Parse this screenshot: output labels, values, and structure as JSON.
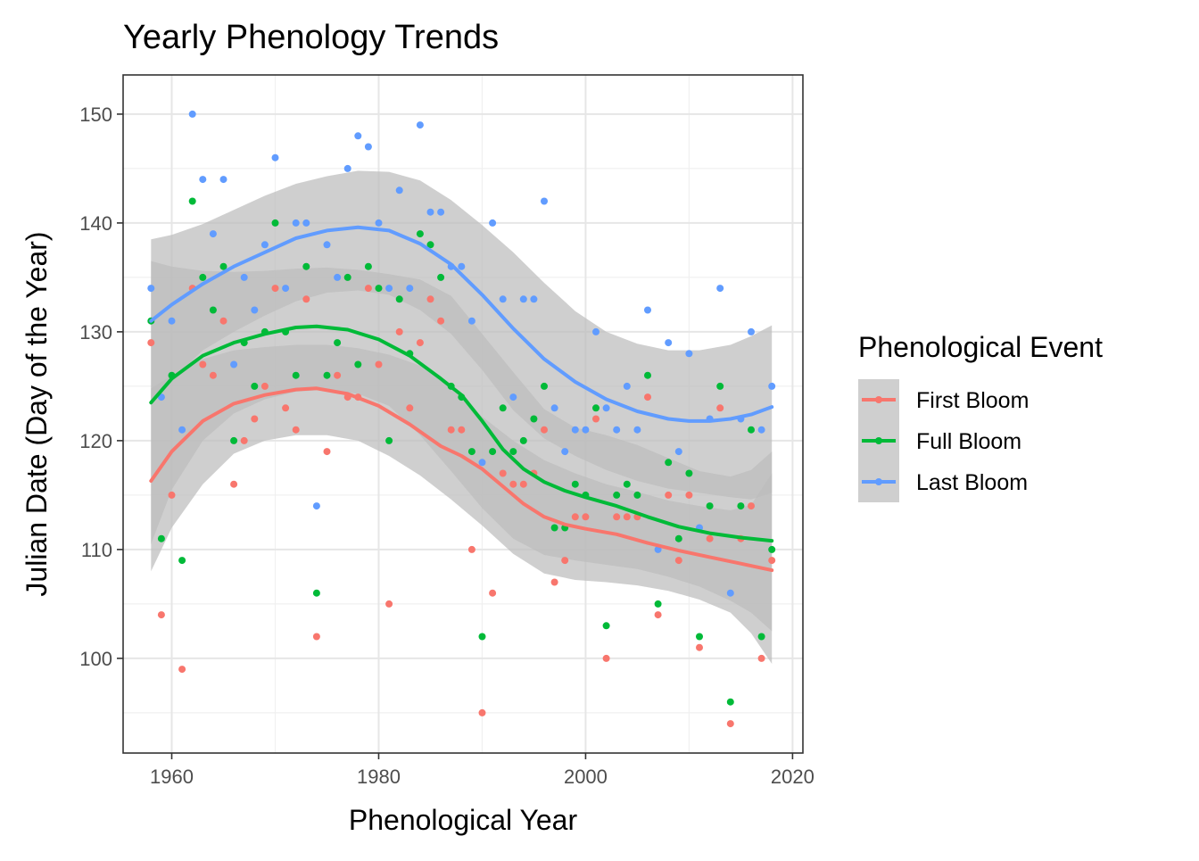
{
  "chart_data": {
    "type": "scatter",
    "title": "Yearly Phenology Trends",
    "xlabel": "Phenological Year",
    "ylabel": "Julian Date (Day of the Year)",
    "xlim": [
      1955.3,
      2021.0
    ],
    "ylim": [
      91.3,
      153.6
    ],
    "x_ticks": [
      1960,
      1980,
      2000,
      2020
    ],
    "y_ticks": [
      100,
      110,
      120,
      130,
      140,
      150
    ],
    "grid": true,
    "legend": {
      "title": "Phenological Event",
      "position": "right"
    },
    "series": [
      {
        "name": "First Bloom",
        "color": "#F8766D",
        "points": [
          [
            1958,
            129
          ],
          [
            1959,
            104
          ],
          [
            1960,
            115
          ],
          [
            1961,
            99
          ],
          [
            1962,
            134
          ],
          [
            1963,
            127
          ],
          [
            1964,
            126
          ],
          [
            1965,
            131
          ],
          [
            1966,
            116
          ],
          [
            1967,
            120
          ],
          [
            1968,
            122
          ],
          [
            1969,
            125
          ],
          [
            1970,
            134
          ],
          [
            1971,
            123
          ],
          [
            1972,
            121
          ],
          [
            1973,
            133
          ],
          [
            1974,
            102
          ],
          [
            1975,
            119
          ],
          [
            1976,
            126
          ],
          [
            1977,
            124
          ],
          [
            1978,
            124
          ],
          [
            1979,
            134
          ],
          [
            1980,
            127
          ],
          [
            1981,
            105
          ],
          [
            1982,
            130
          ],
          [
            1983,
            123
          ],
          [
            1984,
            129
          ],
          [
            1985,
            133
          ],
          [
            1986,
            131
          ],
          [
            1987,
            121
          ],
          [
            1988,
            121
          ],
          [
            1989,
            110
          ],
          [
            1990,
            95
          ],
          [
            1991,
            106
          ],
          [
            1992,
            117
          ],
          [
            1993,
            116
          ],
          [
            1994,
            116
          ],
          [
            1995,
            117
          ],
          [
            1996,
            121
          ],
          [
            1997,
            107
          ],
          [
            1998,
            109
          ],
          [
            1999,
            113
          ],
          [
            2000,
            113
          ],
          [
            2001,
            122
          ],
          [
            2002,
            100
          ],
          [
            2003,
            113
          ],
          [
            2004,
            113
          ],
          [
            2005,
            113
          ],
          [
            2006,
            124
          ],
          [
            2007,
            104
          ],
          [
            2008,
            115
          ],
          [
            2009,
            109
          ],
          [
            2010,
            115
          ],
          [
            2011,
            101
          ],
          [
            2012,
            111
          ],
          [
            2013,
            123
          ],
          [
            2014,
            94
          ],
          [
            2015,
            111
          ],
          [
            2016,
            114
          ],
          [
            2017,
            100
          ],
          [
            2018,
            109
          ]
        ],
        "smooth": [
          [
            1958,
            116.3
          ],
          [
            1960,
            119.0
          ],
          [
            1963,
            121.8
          ],
          [
            1966,
            123.4
          ],
          [
            1969,
            124.2
          ],
          [
            1972,
            124.7
          ],
          [
            1974,
            124.8
          ],
          [
            1977,
            124.3
          ],
          [
            1980,
            123.2
          ],
          [
            1983,
            121.5
          ],
          [
            1986,
            119.5
          ],
          [
            1988,
            118.6
          ],
          [
            1990,
            117.4
          ],
          [
            1992,
            115.8
          ],
          [
            1994,
            114.2
          ],
          [
            1996,
            113.0
          ],
          [
            1998,
            112.3
          ],
          [
            2000,
            111.9
          ],
          [
            2003,
            111.4
          ],
          [
            2006,
            110.6
          ],
          [
            2009,
            109.9
          ],
          [
            2012,
            109.3
          ],
          [
            2015,
            108.7
          ],
          [
            2018,
            108.1
          ]
        ]
      },
      {
        "name": "Full Bloom",
        "color": "#00BA38",
        "points": [
          [
            1958,
            131
          ],
          [
            1959,
            111
          ],
          [
            1960,
            126
          ],
          [
            1961,
            109
          ],
          [
            1962,
            142
          ],
          [
            1963,
            135
          ],
          [
            1964,
            132
          ],
          [
            1965,
            136
          ],
          [
            1966,
            120
          ],
          [
            1967,
            129
          ],
          [
            1968,
            125
          ],
          [
            1969,
            130
          ],
          [
            1970,
            140
          ],
          [
            1971,
            130
          ],
          [
            1972,
            126
          ],
          [
            1973,
            136
          ],
          [
            1974,
            106
          ],
          [
            1975,
            126
          ],
          [
            1976,
            129
          ],
          [
            1977,
            135
          ],
          [
            1978,
            127
          ],
          [
            1979,
            136
          ],
          [
            1980,
            134
          ],
          [
            1981,
            120
          ],
          [
            1982,
            133
          ],
          [
            1983,
            128
          ],
          [
            1984,
            139
          ],
          [
            1985,
            138
          ],
          [
            1986,
            135
          ],
          [
            1987,
            125
          ],
          [
            1988,
            124
          ],
          [
            1989,
            119
          ],
          [
            1990,
            102
          ],
          [
            1991,
            119
          ],
          [
            1992,
            123
          ],
          [
            1993,
            119
          ],
          [
            1994,
            120
          ],
          [
            1995,
            122
          ],
          [
            1996,
            125
          ],
          [
            1997,
            112
          ],
          [
            1998,
            112
          ],
          [
            1999,
            116
          ],
          [
            2000,
            115
          ],
          [
            2001,
            123
          ],
          [
            2002,
            103
          ],
          [
            2003,
            115
          ],
          [
            2004,
            116
          ],
          [
            2005,
            115
          ],
          [
            2006,
            126
          ],
          [
            2007,
            105
          ],
          [
            2008,
            118
          ],
          [
            2009,
            111
          ],
          [
            2010,
            117
          ],
          [
            2011,
            102
          ],
          [
            2012,
            114
          ],
          [
            2013,
            125
          ],
          [
            2014,
            96
          ],
          [
            2015,
            114
          ],
          [
            2016,
            121
          ],
          [
            2017,
            102
          ],
          [
            2018,
            110
          ]
        ],
        "smooth": [
          [
            1958,
            123.5
          ],
          [
            1960,
            125.7
          ],
          [
            1963,
            127.8
          ],
          [
            1966,
            129.0
          ],
          [
            1969,
            129.8
          ],
          [
            1972,
            130.4
          ],
          [
            1974,
            130.5
          ],
          [
            1977,
            130.2
          ],
          [
            1980,
            129.3
          ],
          [
            1983,
            127.8
          ],
          [
            1986,
            125.7
          ],
          [
            1988,
            124.2
          ],
          [
            1990,
            121.8
          ],
          [
            1992,
            119.2
          ],
          [
            1994,
            117.4
          ],
          [
            1996,
            116.2
          ],
          [
            1998,
            115.4
          ],
          [
            2000,
            114.8
          ],
          [
            2003,
            114.0
          ],
          [
            2006,
            113.0
          ],
          [
            2009,
            112.1
          ],
          [
            2012,
            111.5
          ],
          [
            2015,
            111.1
          ],
          [
            2018,
            110.8
          ]
        ]
      },
      {
        "name": "Last Bloom",
        "color": "#619CFF",
        "points": [
          [
            1958,
            134
          ],
          [
            1959,
            124
          ],
          [
            1960,
            131
          ],
          [
            1961,
            121
          ],
          [
            1962,
            150
          ],
          [
            1963,
            144
          ],
          [
            1964,
            139
          ],
          [
            1965,
            144
          ],
          [
            1966,
            127
          ],
          [
            1967,
            135
          ],
          [
            1968,
            132
          ],
          [
            1969,
            138
          ],
          [
            1970,
            146
          ],
          [
            1971,
            134
          ],
          [
            1972,
            140
          ],
          [
            1973,
            140
          ],
          [
            1974,
            114
          ],
          [
            1975,
            138
          ],
          [
            1976,
            135
          ],
          [
            1977,
            145
          ],
          [
            1978,
            148
          ],
          [
            1979,
            147
          ],
          [
            1980,
            140
          ],
          [
            1981,
            134
          ],
          [
            1982,
            143
          ],
          [
            1983,
            134
          ],
          [
            1984,
            149
          ],
          [
            1985,
            141
          ],
          [
            1986,
            141
          ],
          [
            1987,
            136
          ],
          [
            1988,
            136
          ],
          [
            1989,
            131
          ],
          [
            1990,
            118
          ],
          [
            1991,
            140
          ],
          [
            1992,
            133
          ],
          [
            1993,
            124
          ],
          [
            1994,
            133
          ],
          [
            1995,
            133
          ],
          [
            1996,
            142
          ],
          [
            1997,
            123
          ],
          [
            1998,
            119
          ],
          [
            1999,
            121
          ],
          [
            2000,
            121
          ],
          [
            2001,
            130
          ],
          [
            2002,
            123
          ],
          [
            2003,
            121
          ],
          [
            2004,
            125
          ],
          [
            2005,
            121
          ],
          [
            2006,
            132
          ],
          [
            2007,
            110
          ],
          [
            2008,
            129
          ],
          [
            2009,
            119
          ],
          [
            2010,
            128
          ],
          [
            2011,
            112
          ],
          [
            2012,
            122
          ],
          [
            2013,
            134
          ],
          [
            2014,
            106
          ],
          [
            2015,
            122
          ],
          [
            2016,
            130
          ],
          [
            2017,
            121
          ],
          [
            2018,
            125
          ]
        ],
        "smooth": [
          [
            1958,
            131.0
          ],
          [
            1960,
            132.5
          ],
          [
            1963,
            134.4
          ],
          [
            1966,
            136.0
          ],
          [
            1969,
            137.3
          ],
          [
            1972,
            138.6
          ],
          [
            1975,
            139.3
          ],
          [
            1978,
            139.6
          ],
          [
            1981,
            139.3
          ],
          [
            1984,
            138.1
          ],
          [
            1987,
            136.2
          ],
          [
            1990,
            133.4
          ],
          [
            1993,
            130.3
          ],
          [
            1996,
            127.5
          ],
          [
            1999,
            125.4
          ],
          [
            2002,
            123.8
          ],
          [
            2005,
            122.7
          ],
          [
            2008,
            122.0
          ],
          [
            2010,
            121.8
          ],
          [
            2012,
            121.8
          ],
          [
            2014,
            122.0
          ],
          [
            2016,
            122.4
          ],
          [
            2018,
            123.1
          ]
        ]
      }
    ],
    "confidence_bands": [
      {
        "series": "First Bloom",
        "x": [
          1958,
          1960,
          1963,
          1966,
          1969,
          1972,
          1975,
          1978,
          1981,
          1984,
          1987,
          1990,
          1993,
          1996,
          1999,
          2002,
          2005,
          2008,
          2011,
          2014,
          2016,
          2018
        ],
        "lower": [
          108.0,
          112.0,
          116.0,
          118.8,
          120.0,
          120.5,
          120.5,
          120.0,
          118.6,
          116.8,
          114.6,
          112.2,
          109.6,
          107.8,
          107.2,
          107.0,
          106.7,
          106.2,
          105.4,
          104.2,
          102.3,
          99.5
        ],
        "upper": [
          124.8,
          126.0,
          127.5,
          128.3,
          128.6,
          128.8,
          128.8,
          128.5,
          127.9,
          126.9,
          124.8,
          122.2,
          120.0,
          118.2,
          117.0,
          116.0,
          115.3,
          114.5,
          114.0,
          113.6,
          114.1,
          117.0
        ]
      },
      {
        "series": "Full Bloom",
        "x": [
          1958,
          1960,
          1963,
          1966,
          1969,
          1972,
          1975,
          1978,
          1981,
          1984,
          1987,
          1990,
          1993,
          1996,
          1999,
          2002,
          2005,
          2008,
          2011,
          2014,
          2016,
          2018
        ],
        "lower": [
          110.5,
          115.5,
          120.0,
          122.5,
          123.8,
          124.5,
          124.7,
          124.3,
          123.2,
          120.5,
          117.2,
          113.8,
          111.0,
          109.5,
          109.0,
          108.6,
          108.2,
          107.5,
          106.6,
          105.3,
          104.2,
          102.5
        ],
        "upper": [
          136.5,
          136.0,
          135.6,
          135.5,
          135.6,
          135.8,
          135.9,
          135.7,
          135.3,
          134.8,
          133.3,
          129.8,
          126.3,
          122.9,
          121.2,
          120.5,
          119.6,
          118.4,
          117.2,
          116.7,
          117.3,
          119.0
        ]
      },
      {
        "series": "Last Bloom",
        "x": [
          1958,
          1960,
          1963,
          1966,
          1969,
          1972,
          1975,
          1978,
          1981,
          1984,
          1987,
          1990,
          1993,
          1996,
          1999,
          2002,
          2005,
          2008,
          2011,
          2014,
          2016,
          2018
        ],
        "lower": [
          123.5,
          125.5,
          128.3,
          130.0,
          131.5,
          132.8,
          133.6,
          133.8,
          133.4,
          132.0,
          129.8,
          126.5,
          122.8,
          120.2,
          118.6,
          117.3,
          116.3,
          115.6,
          115.2,
          114.8,
          114.6,
          115.2
        ],
        "upper": [
          138.5,
          138.9,
          139.9,
          141.2,
          142.5,
          143.6,
          144.3,
          144.8,
          144.7,
          143.9,
          142.1,
          139.8,
          137.3,
          134.5,
          131.9,
          130.0,
          128.9,
          128.3,
          128.3,
          128.8,
          129.6,
          130.6
        ]
      }
    ],
    "band_color": "#bdbdbd"
  }
}
